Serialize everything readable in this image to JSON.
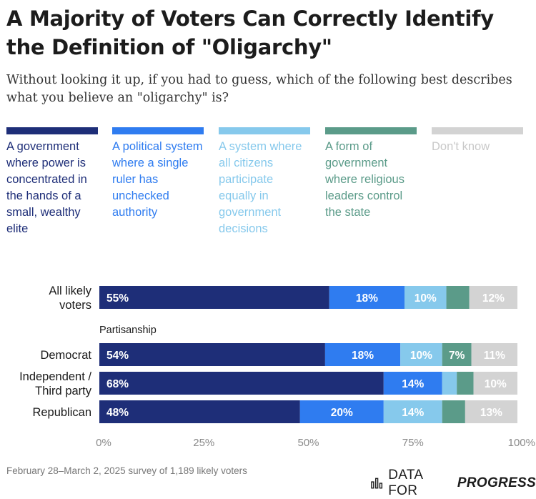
{
  "title": "A Majority of Voters Can Correctly Identify the Definition of \"Oligarchy\"",
  "subtitle": "Without looking it up, if you had to guess, which of the following best describes what you believe an \"oligarchy\" is?",
  "footer": {
    "note": "February 28–March 2, 2025 survey of 1,189 likely voters",
    "logo_prefix": "DATA FOR",
    "logo_bold": "PROGRESS"
  },
  "chart_data": {
    "type": "bar",
    "orientation": "horizontal",
    "stacked": true,
    "title": "A Majority of Voters Can Correctly Identify the Definition of \"Oligarchy\"",
    "subtitle": "Without looking it up, if you had to guess, which of the following best describes what you believe an \"oligarchy\" is?",
    "categories": [
      "All likely voters",
      "Democrat",
      "Independent / Third party",
      "Republican"
    ],
    "group_label": "Partisanship",
    "xlim": [
      0,
      100
    ],
    "x_ticks": [
      "0%",
      "25%",
      "50%",
      "75%",
      "100%"
    ],
    "legend_placement": "top",
    "grid": false,
    "series": [
      {
        "name": "A government where power is concentrated in the hands of a small, wealthy elite",
        "color": "#1e2e78",
        "values": [
          55,
          54,
          68,
          48
        ],
        "labels": [
          "55%",
          "54%",
          "68%",
          "48%"
        ]
      },
      {
        "name": "A political system where a single ruler has unchecked authority",
        "color": "#2f7cf0",
        "values": [
          18,
          18,
          14,
          20
        ],
        "labels": [
          "18%",
          "18%",
          "14%",
          "20%"
        ]
      },
      {
        "name": "A system where all citizens participate equally in government decisions",
        "color": "#86c9ec",
        "values": [
          10,
          10,
          3.5,
          14
        ],
        "labels": [
          "10%",
          "10%",
          "",
          "14%"
        ]
      },
      {
        "name": "A form of government where religious leaders control the state",
        "color": "#5b9b89",
        "values": [
          5.5,
          7,
          4,
          5.5
        ],
        "labels": [
          "",
          "7%",
          "",
          ""
        ]
      },
      {
        "name": "Don't know",
        "color": "#d3d3d3",
        "values": [
          11.5,
          11,
          10.5,
          12.5
        ],
        "labels": [
          "12%",
          "11%",
          "10%",
          "13%"
        ]
      }
    ]
  }
}
